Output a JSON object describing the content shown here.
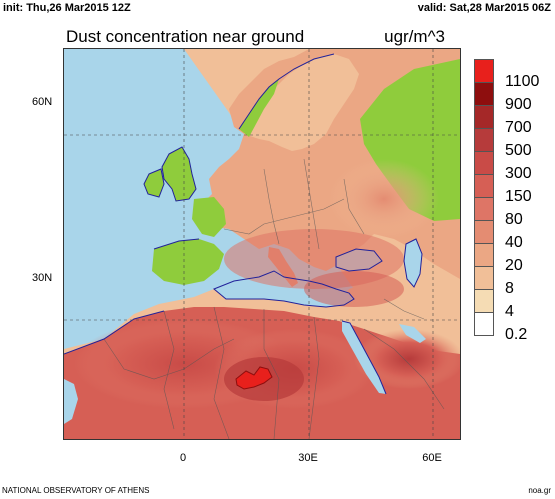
{
  "header": {
    "init": "init: Thu,26 Mar2015 12Z",
    "valid": "valid: Sat,28 Mar2015 06Z"
  },
  "map": {
    "title": "Dust concentration near ground",
    "units": "ugr/m^3",
    "lat_labels": [
      "60N",
      "30N"
    ],
    "lon_labels": [
      "0",
      "30E",
      "60E"
    ],
    "colors": {
      "sea": "#a9d5ea",
      "clean_land": "#8fcc3c",
      "coast": "#22229a",
      "borders": "#555555"
    }
  },
  "legend": {
    "levels": [
      "1100",
      "900",
      "700",
      "500",
      "300",
      "150",
      "80",
      "40",
      "20",
      "8",
      "4",
      "0.2"
    ],
    "colors": [
      "#e8201c",
      "#8e0e0e",
      "#a52828",
      "#b63b3b",
      "#c94b47",
      "#d65f55",
      "#de7566",
      "#e48c72",
      "#eba784",
      "#f1bf98",
      "#f5dcb4",
      "#ffffff"
    ]
  },
  "footer": {
    "left": "NATIONAL OBSERVATORY OF ATHENS",
    "right": "noa.gr"
  }
}
